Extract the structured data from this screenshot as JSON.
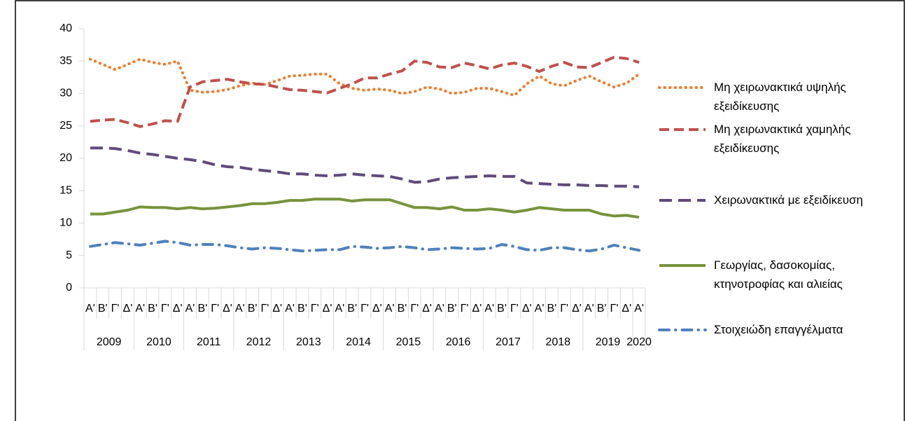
{
  "chart_data": {
    "type": "line",
    "categories": [
      "Α'",
      "Β'",
      "Γ'",
      "Δ'",
      "Α'",
      "Β'",
      "Γ'",
      "Δ'",
      "Α'",
      "Β'",
      "Γ'",
      "Δ'",
      "Α'",
      "Β'",
      "Γ'",
      "Δ'",
      "Α'",
      "Β'",
      "Γ'",
      "Δ'",
      "Α'",
      "Β'",
      "Γ'",
      "Δ'",
      "Α'",
      "Β'",
      "Γ'",
      "Δ'",
      "Α'",
      "Β'",
      "Γ'",
      "Δ'",
      "Α'",
      "Β'",
      "Γ'",
      "Δ'",
      "Α'",
      "Β'",
      "Γ'",
      "Δ'",
      "Α'",
      "Β'",
      "Γ'",
      "Δ'",
      "Α'"
    ],
    "groups": [
      "2009",
      "2010",
      "2011",
      "2012",
      "2013",
      "2014",
      "2015",
      "2016",
      "2017",
      "2018",
      "2019",
      "2020"
    ],
    "ylim": [
      0,
      40
    ],
    "yticks": [
      0,
      5,
      10,
      15,
      20,
      25,
      30,
      35,
      40
    ],
    "grid": false,
    "series": [
      {
        "name": "Μη χειρωνακτικά υψηλής εξειδίκευσης",
        "color": "#ed7d31",
        "dash": "dot",
        "values": [
          35.3,
          34.5,
          33.7,
          34.5,
          35.3,
          34.8,
          34.5,
          35.0,
          30.5,
          30.2,
          30.3,
          30.6,
          31.2,
          31.6,
          31.4,
          32.0,
          32.7,
          32.8,
          33.0,
          33.0,
          31.5,
          30.8,
          30.5,
          30.7,
          30.5,
          30.0,
          30.3,
          31.0,
          30.7,
          30.0,
          30.2,
          30.8,
          30.8,
          30.3,
          29.7,
          31.5,
          32.7,
          31.5,
          31.2,
          32.0,
          32.7,
          31.8,
          31.0,
          31.6,
          33.0
        ]
      },
      {
        "name": "Μη χειρωνακτικά χαμηλής εξειδίκευσης",
        "color": "#c0504d",
        "dash": "dash",
        "values": [
          25.7,
          25.9,
          26.0,
          25.5,
          24.9,
          25.3,
          25.8,
          25.7,
          31.0,
          31.8,
          32.0,
          32.2,
          31.8,
          31.5,
          31.4,
          31.0,
          30.6,
          30.5,
          30.3,
          30.1,
          30.8,
          31.5,
          32.4,
          32.4,
          33.0,
          33.5,
          35.0,
          34.8,
          34.1,
          34.0,
          34.7,
          34.3,
          33.8,
          34.4,
          34.7,
          34.2,
          33.4,
          34.2,
          34.8,
          34.1,
          34.0,
          34.8,
          35.6,
          35.4,
          34.8
        ]
      },
      {
        "name": "Χειρωνακτικά με εξειδίκευση",
        "color": "#604a7b",
        "dash": "longdash",
        "values": [
          21.6,
          21.6,
          21.5,
          21.2,
          20.8,
          20.6,
          20.3,
          20.0,
          19.8,
          19.5,
          19.0,
          18.7,
          18.6,
          18.3,
          18.1,
          17.9,
          17.6,
          17.6,
          17.4,
          17.3,
          17.4,
          17.6,
          17.4,
          17.3,
          17.2,
          16.8,
          16.3,
          16.4,
          16.8,
          17.0,
          17.1,
          17.2,
          17.3,
          17.2,
          17.2,
          16.2,
          16.1,
          16.0,
          15.9,
          15.9,
          15.8,
          15.8,
          15.7,
          15.7,
          15.6
        ]
      },
      {
        "name": "Γεωργίας, δασοκομίας, κτηνοτροφίας και αλιείας",
        "color": "#77933c",
        "dash": "solid",
        "values": [
          11.4,
          11.4,
          11.7,
          12.0,
          12.5,
          12.4,
          12.4,
          12.2,
          12.4,
          12.2,
          12.3,
          12.5,
          12.7,
          13.0,
          13.0,
          13.2,
          13.5,
          13.5,
          13.7,
          13.7,
          13.7,
          13.4,
          13.6,
          13.6,
          13.6,
          13.0,
          12.4,
          12.4,
          12.2,
          12.5,
          12.0,
          12.0,
          12.2,
          12.0,
          11.7,
          12.0,
          12.4,
          12.2,
          12.0,
          12.0,
          12.0,
          11.4,
          11.1,
          11.2,
          10.9
        ]
      },
      {
        "name": "Στοιχειώδη επαγγέλματα",
        "color": "#4f81bd",
        "dash": "dashdot",
        "values": [
          6.4,
          6.7,
          7.0,
          6.8,
          6.6,
          6.9,
          7.2,
          7.0,
          6.6,
          6.7,
          6.7,
          6.5,
          6.2,
          6.0,
          6.2,
          6.1,
          5.9,
          5.7,
          5.8,
          5.9,
          5.9,
          6.4,
          6.3,
          6.1,
          6.2,
          6.4,
          6.2,
          5.9,
          6.0,
          6.2,
          6.1,
          6.0,
          6.1,
          6.7,
          6.4,
          5.9,
          5.8,
          6.2,
          6.2,
          5.9,
          5.7,
          6.0,
          6.6,
          6.2,
          5.8
        ]
      }
    ]
  }
}
